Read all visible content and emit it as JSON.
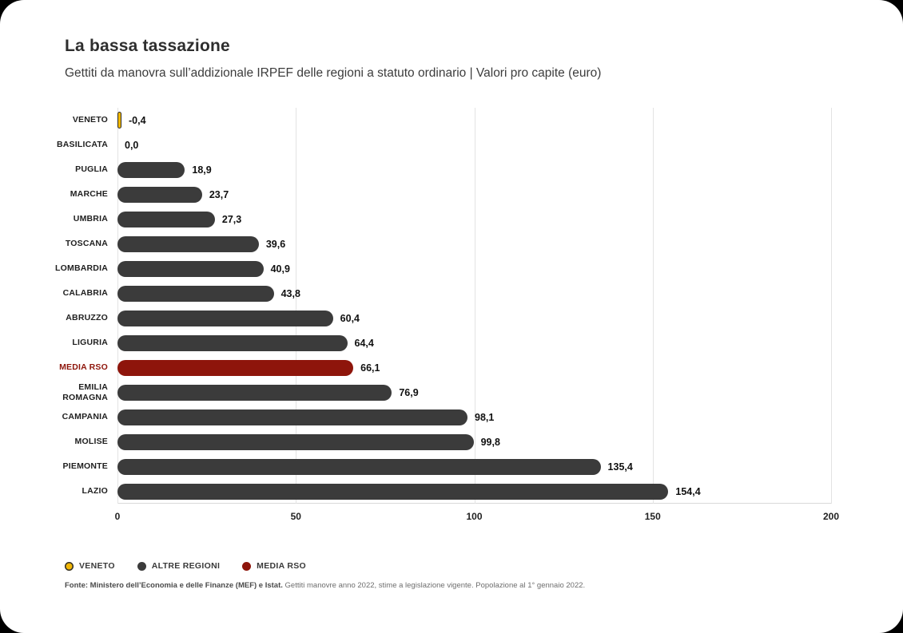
{
  "header": {
    "title": "La bassa tassazione",
    "subtitle": "Gettiti da manovra sull’addizionale IRPEF delle regioni a statuto ordinario  |  Valori pro capite (euro)"
  },
  "chart_data": {
    "type": "bar",
    "orientation": "horizontal",
    "title": "La bassa tassazione",
    "subtitle": "Gettiti da manovra sull’addizionale IRPEF delle regioni a statuto ordinario | Valori pro capite (euro)",
    "xlim": [
      0,
      200
    ],
    "xticks": [
      "0",
      "50",
      "100",
      "150",
      "200"
    ],
    "grid": "vertical-lines",
    "colors": {
      "veneto": "#f2b705",
      "altre_regioni": "#3b3b3b",
      "media_rso": "#8e150b"
    },
    "bars": [
      {
        "category": "VENETO",
        "value": -0.4,
        "label": "-0,4",
        "group": "veneto"
      },
      {
        "category": "BASILICATA",
        "value": 0.0,
        "label": "0,0",
        "group": "altre_regioni"
      },
      {
        "category": "PUGLIA",
        "value": 18.9,
        "label": "18,9",
        "group": "altre_regioni"
      },
      {
        "category": "MARCHE",
        "value": 23.7,
        "label": "23,7",
        "group": "altre_regioni"
      },
      {
        "category": "UMBRIA",
        "value": 27.3,
        "label": "27,3",
        "group": "altre_regioni"
      },
      {
        "category": "TOSCANA",
        "value": 39.6,
        "label": "39,6",
        "group": "altre_regioni"
      },
      {
        "category": "LOMBARDIA",
        "value": 40.9,
        "label": "40,9",
        "group": "altre_regioni"
      },
      {
        "category": "CALABRIA",
        "value": 43.8,
        "label": "43,8",
        "group": "altre_regioni"
      },
      {
        "category": "ABRUZZO",
        "value": 60.4,
        "label": "60,4",
        "group": "altre_regioni"
      },
      {
        "category": "LIGURIA",
        "value": 64.4,
        "label": "64,4",
        "group": "altre_regioni"
      },
      {
        "category": "MEDIA RSO",
        "value": 66.1,
        "label": "66,1",
        "group": "media_rso"
      },
      {
        "category": "EMILIA ROMAGNA",
        "value": 76.9,
        "label": "76,9",
        "group": "altre_regioni"
      },
      {
        "category": "CAMPANIA",
        "value": 98.1,
        "label": "98,1",
        "group": "altre_regioni"
      },
      {
        "category": "MOLISE",
        "value": 99.8,
        "label": "99,8",
        "group": "altre_regioni"
      },
      {
        "category": "PIEMONTE",
        "value": 135.4,
        "label": "135,4",
        "group": "altre_regioni"
      },
      {
        "category": "LAZIO",
        "value": 154.4,
        "label": "154,4",
        "group": "altre_regioni"
      }
    ]
  },
  "legend": {
    "items": [
      {
        "label": "VENETO",
        "color": "#f2b705",
        "ring": "#2f2f2f"
      },
      {
        "label": "ALTRE REGIONI",
        "color": "#3b3b3b"
      },
      {
        "label": "MEDIA RSO",
        "color": "#8e150b"
      }
    ]
  },
  "footer": {
    "source_bold": "Fonte: Ministero dell’Economia e delle Finanze (MEF) e Istat.",
    "source_note": " Gettiti manovre anno 2022, stime a legislazione vigente. Popolazione al 1° gennaio 2022."
  }
}
